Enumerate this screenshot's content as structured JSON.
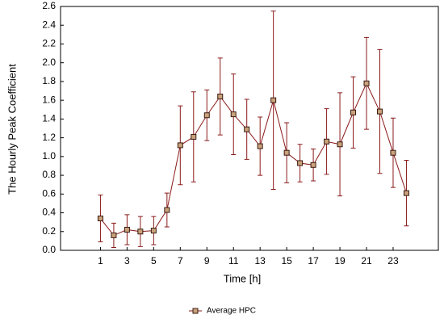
{
  "chart_data": {
    "type": "line",
    "x_label": "Time [h]",
    "y_label": "The Hourly Peak Coefficient",
    "x": [
      1,
      2,
      3,
      4,
      5,
      6,
      7,
      8,
      9,
      10,
      11,
      12,
      13,
      14,
      15,
      16,
      17,
      18,
      19,
      20,
      21,
      22,
      23,
      24
    ],
    "series": [
      {
        "name": "Average HPC",
        "color": "#8b1a1a",
        "marker_fill": "#c9a27c",
        "values": [
          0.34,
          0.16,
          0.22,
          0.2,
          0.21,
          0.43,
          1.12,
          1.21,
          1.44,
          1.64,
          1.45,
          1.29,
          1.11,
          1.6,
          1.04,
          0.93,
          0.91,
          1.16,
          1.13,
          1.47,
          1.78,
          1.48,
          1.04,
          0.61
        ],
        "errors": [
          0.25,
          0.13,
          0.16,
          0.16,
          0.15,
          0.18,
          0.42,
          0.48,
          0.27,
          0.41,
          0.43,
          0.32,
          0.31,
          0.95,
          0.32,
          0.2,
          0.17,
          0.35,
          0.55,
          0.38,
          0.49,
          0.66,
          0.37,
          0.35
        ]
      }
    ],
    "xlim": [
      -2,
      26.4
    ],
    "ylim": [
      0,
      2.6
    ],
    "xticks": [
      1,
      3,
      5,
      7,
      9,
      11,
      13,
      15,
      17,
      19,
      21,
      23
    ],
    "yticks": [
      {
        "value": 0,
        "label": "0.0"
      },
      {
        "value": 0.2,
        "label": "0.2"
      },
      {
        "value": 0.4,
        "label": "0.4"
      },
      {
        "value": 0.6,
        "label": "0.6"
      },
      {
        "value": 0.8,
        "label": "0.8"
      },
      {
        "value": 1,
        "label": "1.0"
      },
      {
        "value": 1.2,
        "label": "1.2"
      },
      {
        "value": 1.4,
        "label": "1.4"
      },
      {
        "value": 1.6,
        "label": "1.6"
      },
      {
        "value": 1.8,
        "label": "1.8"
      },
      {
        "value": 2,
        "label": "2.0"
      },
      {
        "value": 2.2,
        "label": "2.2"
      },
      {
        "value": 2.4,
        "label": "2.4"
      },
      {
        "value": 2.6,
        "label": "2.6"
      }
    ],
    "grid": false
  }
}
